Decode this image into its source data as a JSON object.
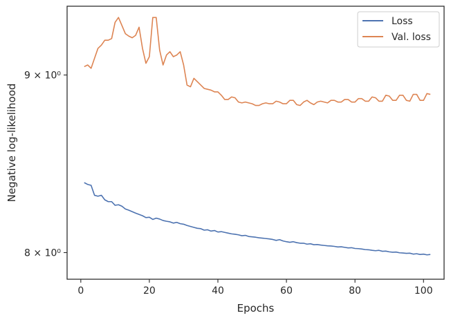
{
  "chart_data": {
    "type": "line",
    "xlabel": "Epochs",
    "ylabel": "Negative log-likelihood",
    "xlim": [
      -4,
      106
    ],
    "ylim": [
      7.86,
      9.42
    ],
    "yscale": "log",
    "grid": false,
    "legend_position": "top-right",
    "x_ticks": [
      0,
      20,
      40,
      60,
      80,
      100
    ],
    "x_tick_labels": [
      "0",
      "20",
      "40",
      "60",
      "80",
      "100"
    ],
    "y_ticks": [
      8,
      9
    ],
    "y_tick_labels": [
      "8 × 10⁰",
      "9 × 10⁰"
    ],
    "x": [
      1,
      2,
      3,
      4,
      5,
      6,
      7,
      8,
      9,
      10,
      11,
      12,
      13,
      14,
      15,
      16,
      17,
      18,
      19,
      20,
      21,
      22,
      23,
      24,
      25,
      26,
      27,
      28,
      29,
      30,
      31,
      32,
      33,
      34,
      35,
      36,
      37,
      38,
      39,
      40,
      41,
      42,
      43,
      44,
      45,
      46,
      47,
      48,
      49,
      50,
      51,
      52,
      53,
      54,
      55,
      56,
      57,
      58,
      59,
      60,
      61,
      62,
      63,
      64,
      65,
      66,
      67,
      68,
      69,
      70,
      71,
      72,
      73,
      74,
      75,
      76,
      77,
      78,
      79,
      80,
      81,
      82,
      83,
      84,
      85,
      86,
      87,
      88,
      89,
      90,
      91,
      92,
      93,
      94,
      95,
      96,
      97,
      98,
      99,
      100,
      101,
      102
    ],
    "series": [
      {
        "name": "Loss",
        "color": "#4c72b0",
        "values": [
          8.38,
          8.37,
          8.365,
          8.31,
          8.305,
          8.31,
          8.285,
          8.275,
          8.275,
          8.255,
          8.258,
          8.25,
          8.235,
          8.228,
          8.22,
          8.212,
          8.205,
          8.198,
          8.188,
          8.19,
          8.178,
          8.185,
          8.18,
          8.172,
          8.168,
          8.165,
          8.158,
          8.162,
          8.155,
          8.152,
          8.145,
          8.14,
          8.135,
          8.13,
          8.128,
          8.12,
          8.122,
          8.115,
          8.118,
          8.11,
          8.112,
          8.108,
          8.104,
          8.1,
          8.098,
          8.095,
          8.09,
          8.092,
          8.086,
          8.084,
          8.082,
          8.079,
          8.077,
          8.075,
          8.073,
          8.07,
          8.065,
          8.069,
          8.062,
          8.058,
          8.055,
          8.058,
          8.053,
          8.05,
          8.05,
          8.045,
          8.047,
          8.042,
          8.043,
          8.04,
          8.038,
          8.036,
          8.035,
          8.033,
          8.03,
          8.031,
          8.028,
          8.025,
          8.026,
          8.022,
          8.021,
          8.019,
          8.016,
          8.015,
          8.012,
          8.01,
          8.012,
          8.007,
          8.008,
          8.004,
          8.002,
          8.003,
          7.999,
          7.998,
          7.996,
          7.997,
          7.992,
          7.994,
          7.99,
          7.992,
          7.988,
          7.99
        ]
      },
      {
        "name": "Val. loss",
        "color": "#dd8452",
        "values": [
          9.05,
          9.06,
          9.04,
          9.1,
          9.16,
          9.18,
          9.21,
          9.21,
          9.22,
          9.32,
          9.35,
          9.3,
          9.25,
          9.235,
          9.225,
          9.24,
          9.29,
          9.16,
          9.07,
          9.11,
          9.35,
          9.35,
          9.15,
          9.06,
          9.12,
          9.14,
          9.11,
          9.12,
          9.14,
          9.06,
          8.94,
          8.93,
          8.98,
          8.96,
          8.94,
          8.92,
          8.915,
          8.91,
          8.9,
          8.9,
          8.88,
          8.855,
          8.855,
          8.87,
          8.865,
          8.84,
          8.835,
          8.84,
          8.835,
          8.83,
          8.82,
          8.82,
          8.83,
          8.835,
          8.83,
          8.83,
          8.845,
          8.84,
          8.83,
          8.83,
          8.85,
          8.85,
          8.825,
          8.82,
          8.84,
          8.85,
          8.835,
          8.825,
          8.84,
          8.845,
          8.84,
          8.835,
          8.85,
          8.85,
          8.84,
          8.84,
          8.855,
          8.855,
          8.84,
          8.84,
          8.86,
          8.86,
          8.845,
          8.845,
          8.87,
          8.865,
          8.845,
          8.845,
          8.88,
          8.875,
          8.85,
          8.85,
          8.88,
          8.88,
          8.85,
          8.845,
          8.885,
          8.885,
          8.85,
          8.85,
          8.89,
          8.885
        ]
      }
    ]
  }
}
